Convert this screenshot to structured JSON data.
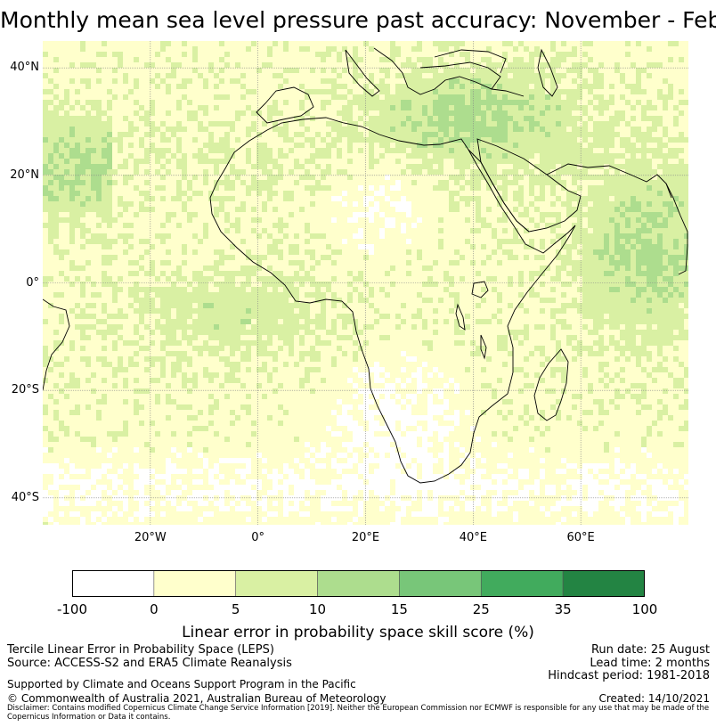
{
  "title": "Monthly mean sea level pressure past accuracy: November - February",
  "map": {
    "lon_range": [
      -40,
      80
    ],
    "lat_range": [
      -45,
      45
    ],
    "lat_ticks": [
      {
        "value": 40,
        "label": "40°N"
      },
      {
        "value": 20,
        "label": "20°N"
      },
      {
        "value": 0,
        "label": "0°"
      },
      {
        "value": -20,
        "label": "20°S"
      },
      {
        "value": -40,
        "label": "40°S"
      }
    ],
    "lon_ticks": [
      {
        "value": -20,
        "label": "20°W"
      },
      {
        "value": 0,
        "label": "0°"
      },
      {
        "value": 20,
        "label": "20°E"
      },
      {
        "value": 40,
        "label": "40°E"
      },
      {
        "value": 60,
        "label": "60°E"
      }
    ],
    "grid": true,
    "coastline_color": "#000000"
  },
  "colorbar": {
    "boundaries": [
      "-100",
      "0",
      "5",
      "10",
      "15",
      "25",
      "35",
      "100"
    ],
    "colors": [
      "#ffffff",
      "#ffffcc",
      "#d9f0a3",
      "#addd8e",
      "#78c679",
      "#41ab5d",
      "#238443"
    ],
    "label": "Linear error in probability space skill score (%)"
  },
  "info": {
    "line1": "Tercile Linear Error in Probability Space (LEPS)",
    "line2": "Source: ACCESS-S2 and ERA5 Climate Reanalysis",
    "line3": "Supported by Climate and Oceans Support Program in the Pacific",
    "line4": "© Commonwealth of Australia 2021, Australian Bureau of Meteorology",
    "run_date": "Run date: 25 August",
    "lead_time": "Lead time: 2 months",
    "hindcast": "Hindcast period: 1981-2018",
    "created": "Created: 14/10/2021",
    "disclaimer": "Disclaimer: Contains modified Copernicus Climate Change Service Information [2019]. Neither the European Commission nor ECMWF is responsible for any use that may be made of the Copernicus Information or Data it contains."
  }
}
